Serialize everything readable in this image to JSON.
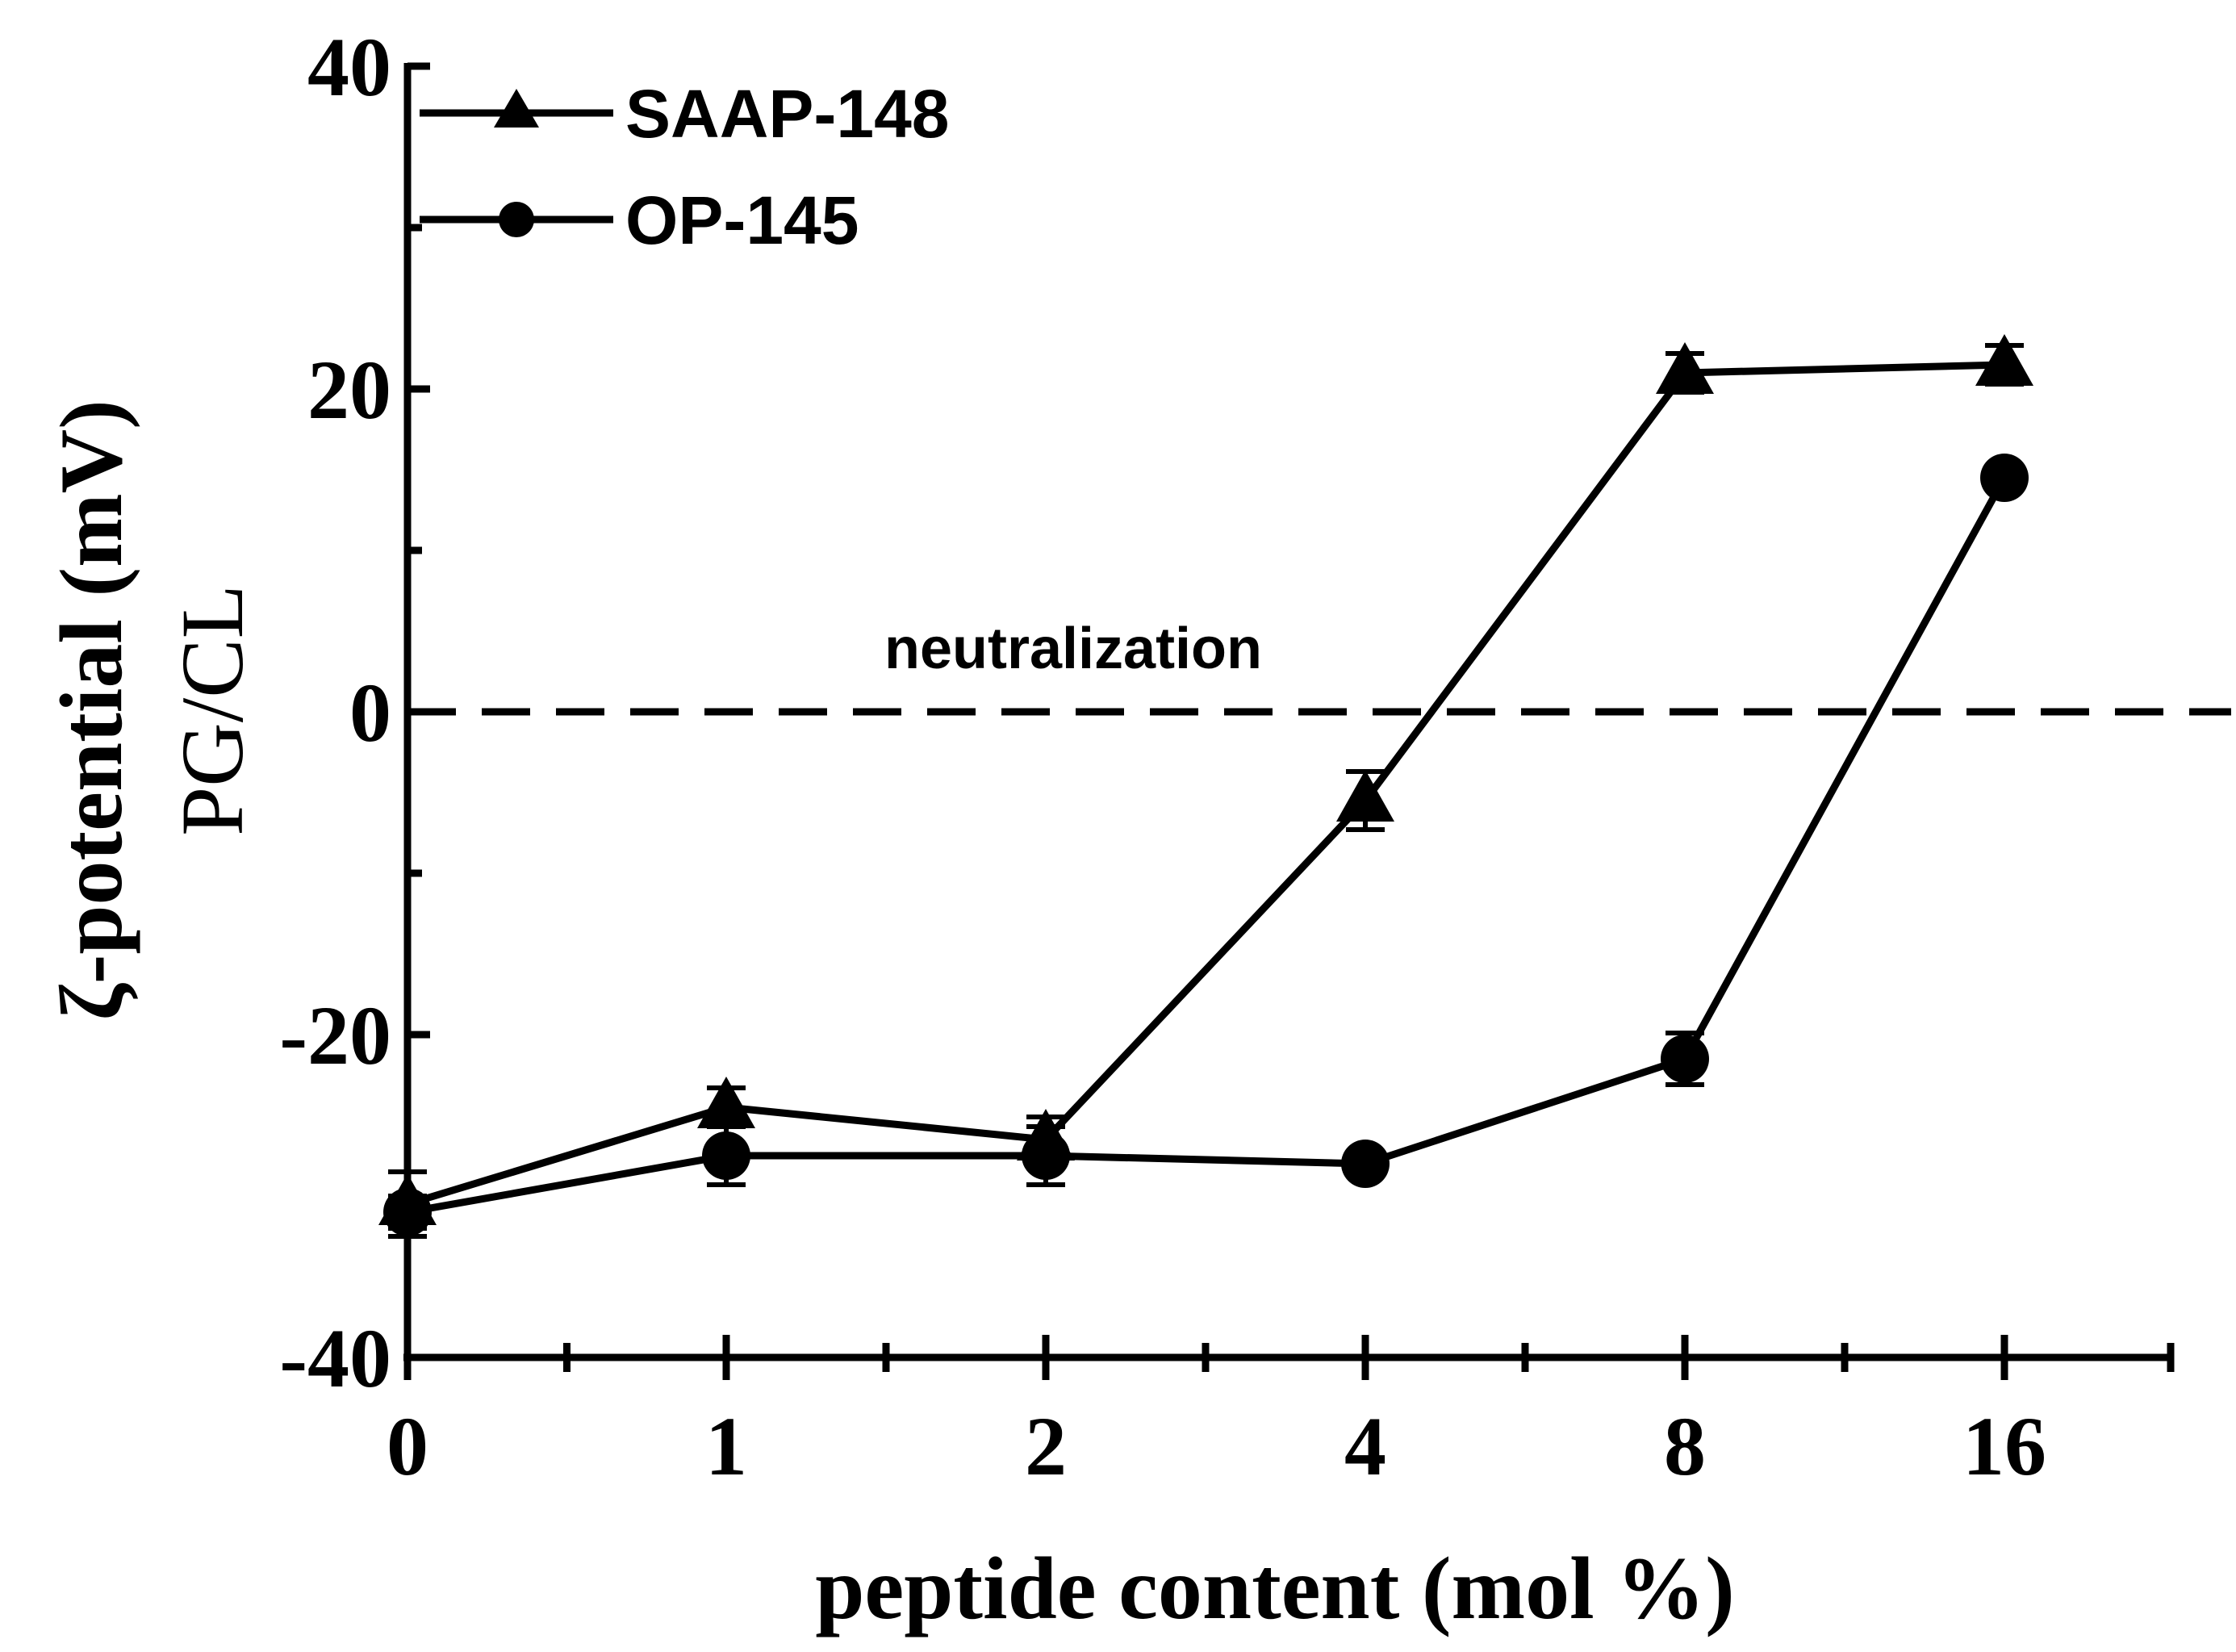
{
  "chart_data": {
    "type": "line",
    "title": "",
    "xlabel": "peptide content (mol %)",
    "ylabel": "ζ-potential (mV)",
    "ylabel_secondary": "PG/CL",
    "categories": [
      "0",
      "1",
      "2",
      "4",
      "8",
      "16"
    ],
    "ylim": [
      -40,
      40
    ],
    "yticks": [
      "-40",
      "-20",
      "0",
      "20",
      "40"
    ],
    "legend_position": "top-left",
    "series": [
      {
        "name": "SAAP-148",
        "marker": "triangle",
        "values": [
          -30.5,
          -24.5,
          -26.5,
          -5.5,
          21.0,
          21.5
        ],
        "errors": [
          2.0,
          1.2,
          1.4,
          1.8,
          1.2,
          1.2
        ]
      },
      {
        "name": "OP-145",
        "marker": "circle",
        "values": [
          -31.0,
          -27.5,
          -27.5,
          -28.0,
          -21.5,
          14.5
        ],
        "errors": [
          1.0,
          1.8,
          1.8,
          0.6,
          1.6,
          0.6
        ]
      }
    ],
    "reference_line": {
      "y": 0,
      "label": "neutralization",
      "style": "dashed"
    }
  }
}
